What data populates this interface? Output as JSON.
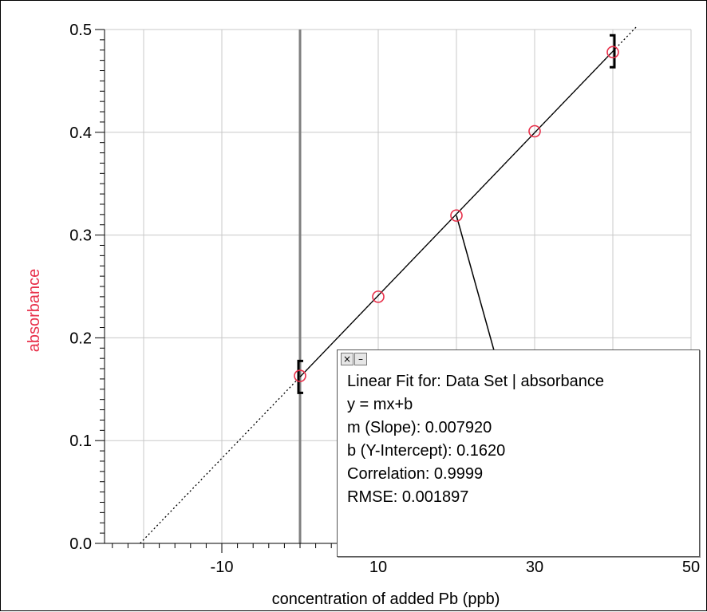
{
  "chart_data": {
    "type": "scatter",
    "title": "",
    "xlabel": "concentration of added Pb (ppb)",
    "ylabel": "absorbance",
    "xlim": [
      -25,
      50
    ],
    "ylim": [
      0.0,
      0.5
    ],
    "x_ticks": [
      -10,
      10,
      30,
      50
    ],
    "x_tick_labels": [
      "-10",
      "10",
      "30",
      "50"
    ],
    "y_ticks": [
      0.0,
      0.1,
      0.2,
      0.3,
      0.4,
      0.5
    ],
    "y_tick_labels": [
      "0.0",
      "0.1",
      "0.2",
      "0.3",
      "0.4",
      "0.5"
    ],
    "x_gridlines": [
      -20,
      -10,
      0,
      10,
      20,
      30,
      40,
      50
    ],
    "y_gridlines": [
      0.0,
      0.1,
      0.2,
      0.3,
      0.4,
      0.5
    ],
    "grid": true,
    "series": [
      {
        "x": [
          0,
          10,
          20,
          30,
          40
        ],
        "y": [
          0.163,
          0.24,
          0.319,
          0.401,
          0.478
        ],
        "marker": "open-circle",
        "color": "#e8304a"
      }
    ],
    "fit": {
      "slope": 0.00792,
      "intercept": 0.162,
      "range": [
        0,
        40
      ],
      "extrapolation": [
        -20.45,
        43
      ],
      "annotation_point": [
        20,
        0.319
      ]
    },
    "y_axis_line_x": 0
  },
  "colors": {
    "ylabel": "#e8304a",
    "marker": "#e8304a",
    "grid": "#c8c8c8",
    "y_zero_line": "#7f7f7f"
  },
  "fit_box": {
    "close_icon": "close-icon",
    "minimize_icon": "minimize-icon",
    "lines": [
      "Linear Fit for:  Data Set | absorbance",
      "y = mx+b",
      "m (Slope): 0.007920",
      "b (Y-Intercept): 0.1620",
      "Correlation: 0.9999",
      "RMSE: 0.001897"
    ]
  }
}
